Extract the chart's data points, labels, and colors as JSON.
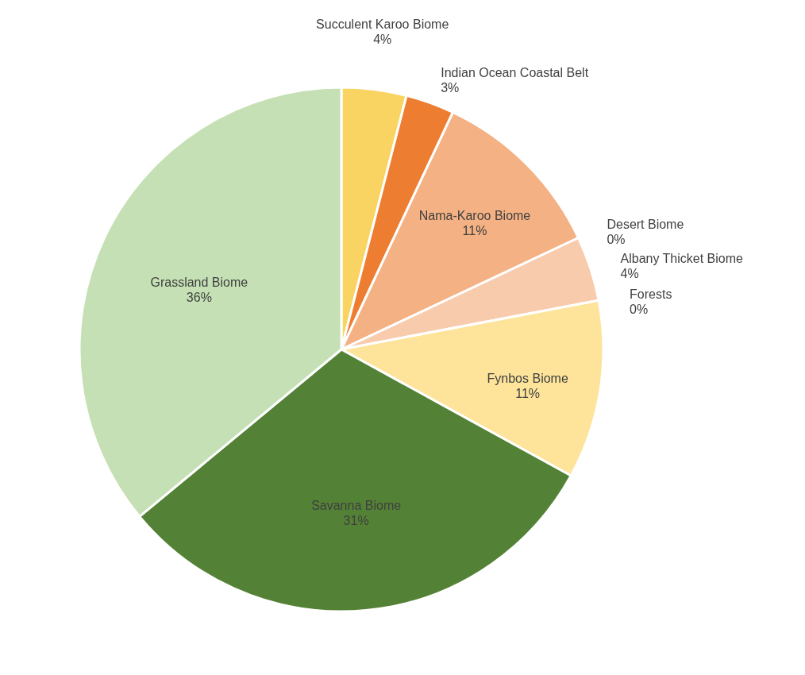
{
  "chart_data": {
    "type": "pie",
    "categories": [
      "Succulent Karoo Biome",
      "Indian Ocean Coastal Belt",
      "Nama-Karoo Biome",
      "Desert Biome",
      "Albany Thicket Biome",
      "Forests",
      "Fynbos Biome",
      "Savanna Biome",
      "Grassland Biome"
    ],
    "values": [
      4,
      3,
      11,
      0,
      4,
      0,
      11,
      31,
      36
    ],
    "value_labels": [
      "4%",
      "3%",
      "11%",
      "0%",
      "4%",
      "0%",
      "11%",
      "31%",
      "36%"
    ],
    "colors": [
      "#f9d462",
      "#ed7d31",
      "#f4b183",
      "#f8cbad",
      "#f8cbad",
      "#70ad47",
      "#fde49a",
      "#538135",
      "#c5e0b4"
    ]
  }
}
